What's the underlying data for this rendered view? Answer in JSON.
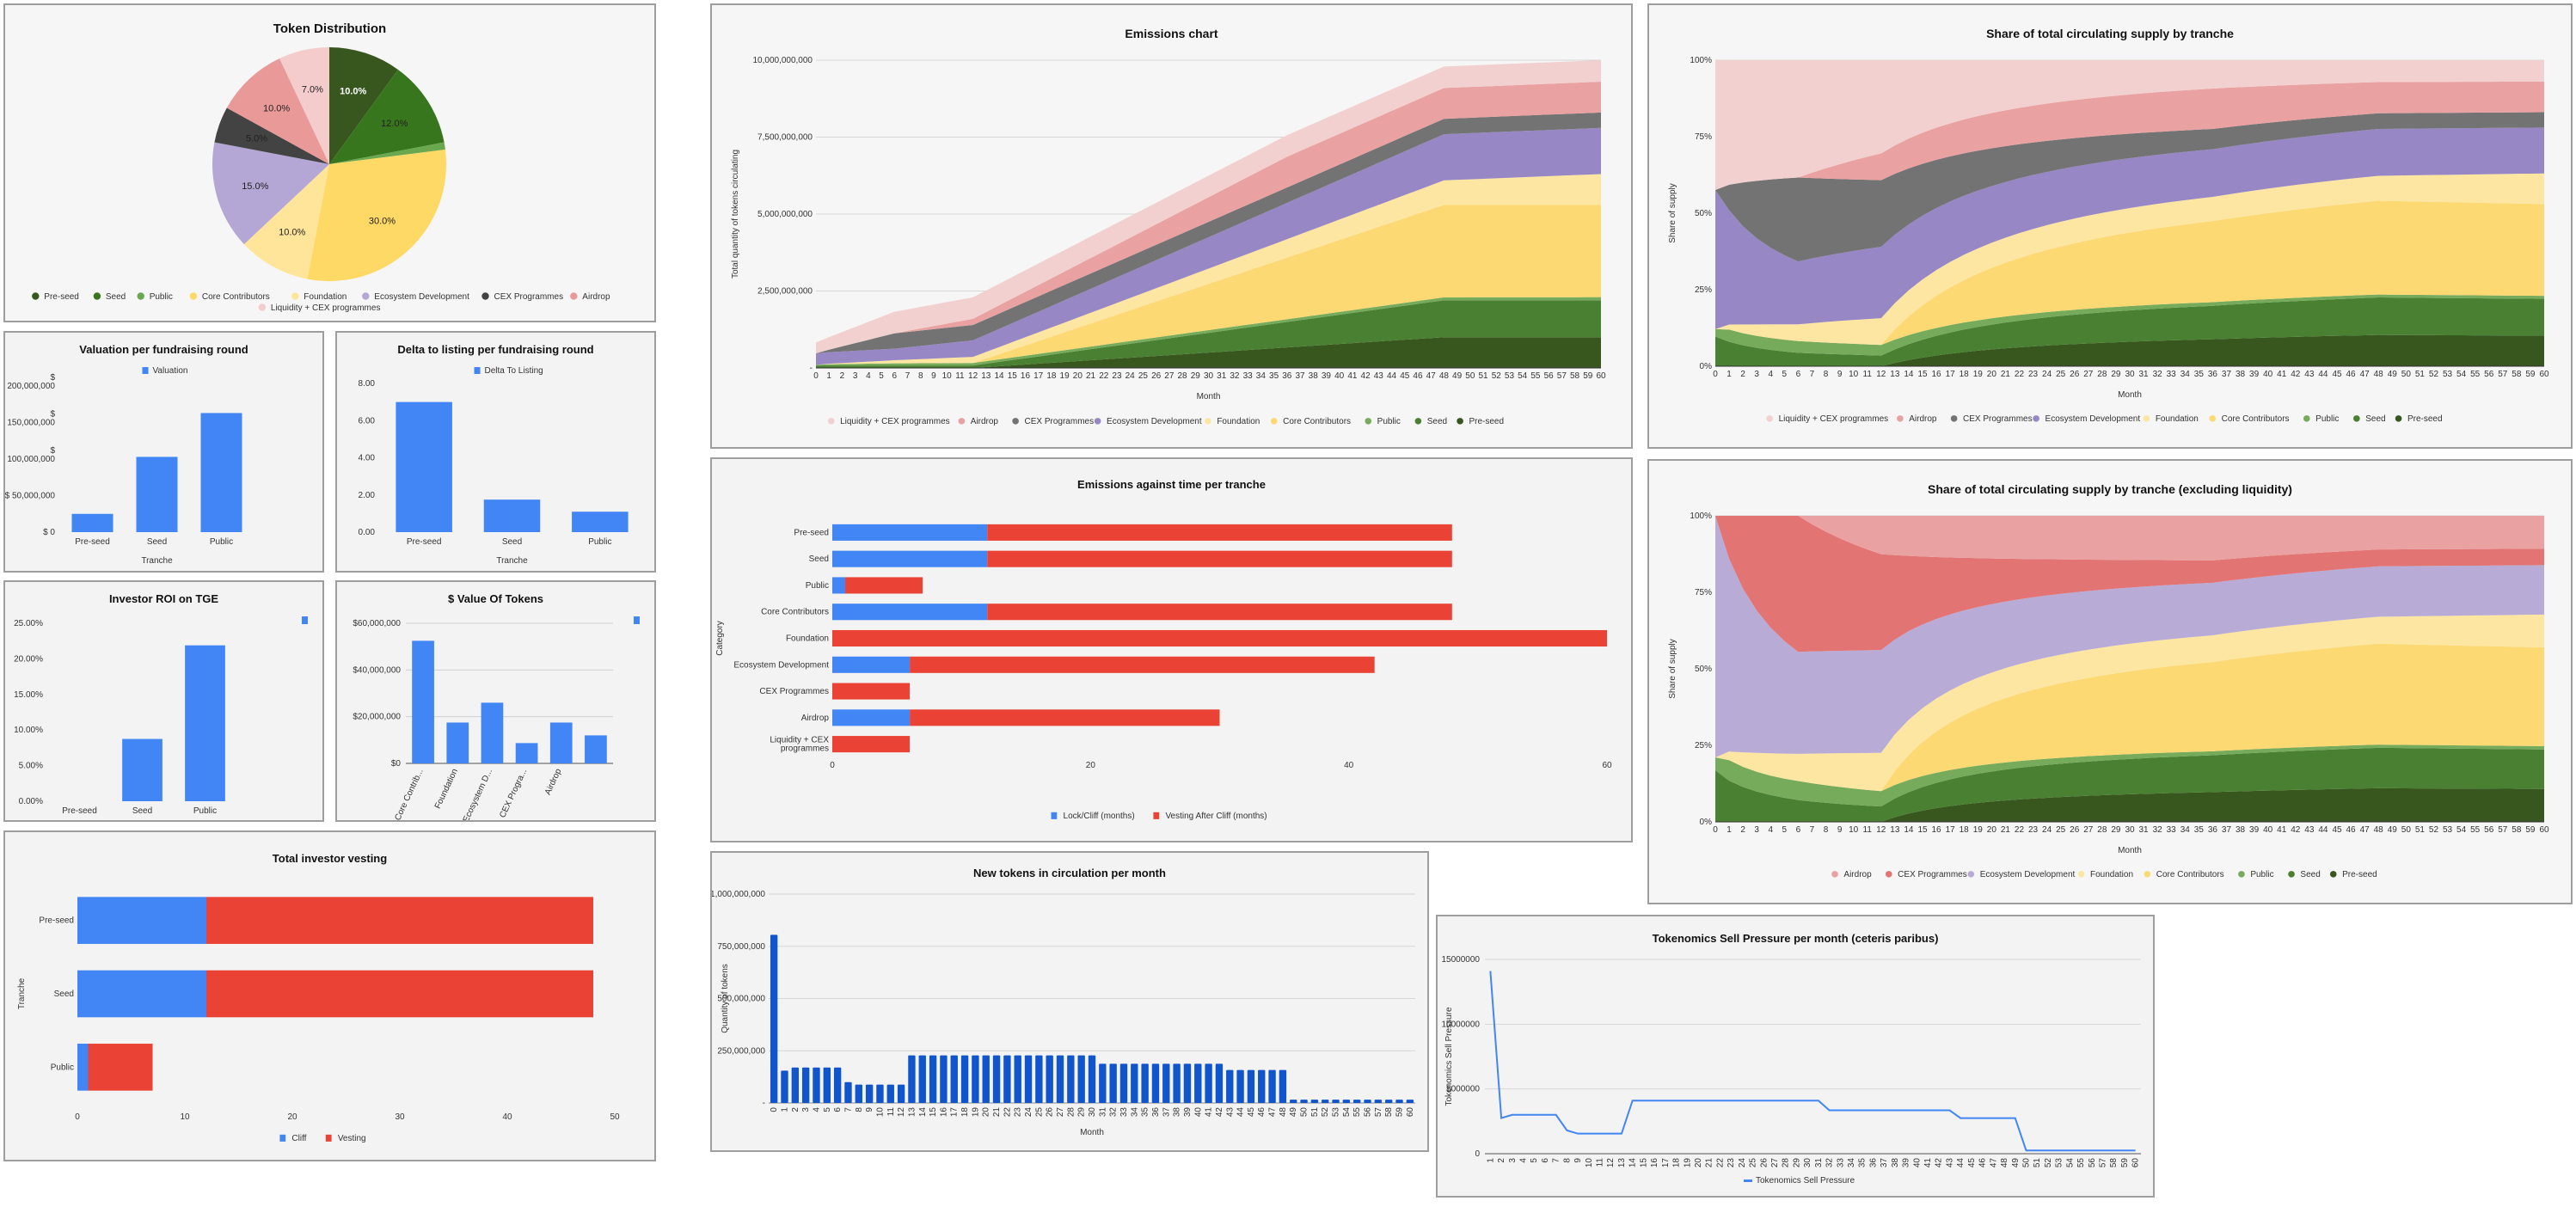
{
  "palette": {
    "pre_seed": "#38571f",
    "seed": "#4a8031",
    "public": "#76ab5c",
    "core_contributors": "#fdd974",
    "foundation": "#fde6a2",
    "ecosystem_development": "#9787c5",
    "ecosystem_development_light": "#b8acd6",
    "cex_programmes": "#737373",
    "cex_programmes_red": "#e27473",
    "airdrop": "#e9a1a1",
    "liquidity": "#f2d0d0",
    "blue": "#4285f4",
    "red": "#ea4335",
    "bar_dark_blue": "#1155cc"
  },
  "chart_data": [
    {
      "id": "token_distribution",
      "type": "pie",
      "title": "Token Distribution",
      "legend": "bottom",
      "slices": [
        {
          "label": "Pre-seed",
          "value": 10.0,
          "display": "10.0%",
          "color": "#38571f"
        },
        {
          "label": "Seed",
          "value": 12.0,
          "display": "12.0%",
          "color": "#38761d"
        },
        {
          "label": "Public",
          "value": 1.0,
          "display": "",
          "color": "#6aa84f"
        },
        {
          "label": "Core Contributors",
          "value": 30.0,
          "display": "30.0%",
          "color": "#ffd966"
        },
        {
          "label": "Foundation",
          "value": 10.0,
          "display": "10.0%",
          "color": "#ffe599"
        },
        {
          "label": "Ecosystem Development",
          "value": 15.0,
          "display": "15.0%",
          "color": "#b4a7d6"
        },
        {
          "label": "CEX Programmes",
          "value": 5.0,
          "display": "5.0%",
          "color": "#434343"
        },
        {
          "label": "Airdrop",
          "value": 10.0,
          "display": "10.0%",
          "color": "#ea9999"
        },
        {
          "label": "Liquidity + CEX programmes",
          "value": 7.0,
          "display": "7.0%",
          "color": "#f4cccc"
        }
      ]
    },
    {
      "id": "valuation",
      "type": "bar",
      "title": "Valuation per fundraising round",
      "legend": "top",
      "legend_labels": [
        "Valuation"
      ],
      "categories": [
        "Pre-seed",
        "Seed",
        "Public"
      ],
      "values": [
        25000000,
        103000000,
        163000000
      ],
      "ylim": [
        0,
        200000000
      ],
      "yticks": [
        "$ 0",
        "$ 50,000,000",
        "$\n100,000,000",
        "$\n150,000,000",
        "$\n200,000,000"
      ],
      "xlabel": "Tranche",
      "ylabel": ""
    },
    {
      "id": "delta_listing",
      "type": "bar",
      "title": "Delta to listing per fundraising round",
      "legend": "top",
      "legend_labels": [
        "Delta To Listing"
      ],
      "categories": [
        "Pre-seed",
        "Seed",
        "Public"
      ],
      "values": [
        7.0,
        1.75,
        1.1
      ],
      "ylim": [
        0,
        8
      ],
      "yticks": [
        "0.00",
        "2.00",
        "4.00",
        "6.00",
        "8.00"
      ],
      "xlabel": "Tranche",
      "ylabel": ""
    },
    {
      "id": "roi_tge",
      "type": "bar",
      "title": "Investor ROI on TGE",
      "legend": "top-right",
      "legend_labels": [
        ""
      ],
      "categories": [
        "Pre-seed",
        "Seed",
        "Public"
      ],
      "values": [
        0.0,
        8.75,
        21.9
      ],
      "ylim": [
        0,
        25
      ],
      "yticks": [
        "0.00%",
        "5.00%",
        "10.00%",
        "15.00%",
        "20.00%",
        "25.00%"
      ],
      "xlabel": "",
      "ylabel": ""
    },
    {
      "id": "value_tokens",
      "type": "bar",
      "title": "$ Value Of Tokens",
      "legend": "top-right",
      "legend_labels": [
        ""
      ],
      "categories": [
        "Core Contrib...",
        "Foundation",
        "Ecosystem D...",
        "CEX Progra...",
        "Airdrop",
        ""
      ],
      "values": [
        52500000,
        17500000,
        26000000,
        8700000,
        17500000,
        12000000
      ],
      "ylim": [
        0,
        60000000
      ],
      "yticks": [
        "$0",
        "$20,000,000",
        "$40,000,000",
        "$60,000,000"
      ],
      "grid": true,
      "xlabel": "",
      "ylabel": ""
    },
    {
      "id": "investor_vesting",
      "type": "stacked-bar-horizontal",
      "title": "Total investor vesting",
      "legend": "bottom",
      "categories": [
        "Pre-seed",
        "Seed",
        "Public"
      ],
      "series": [
        {
          "name": "Cliff",
          "values": [
            12,
            12,
            1
          ],
          "color": "#4285f4"
        },
        {
          "name": "Vesting",
          "values": [
            36,
            36,
            6
          ],
          "color": "#ea4335"
        }
      ],
      "xlim": [
        0,
        50
      ],
      "xticks": [
        "0",
        "10",
        "20",
        "30",
        "40",
        "50"
      ],
      "xlabel": "",
      "ylabel": "Tranche"
    },
    {
      "id": "emissions",
      "type": "area",
      "stacked": true,
      "title": "Emissions chart",
      "xlabel": "Month",
      "ylabel": "Total quantity of tokens circulating",
      "ylim": [
        0,
        10000000000
      ],
      "yticks": [
        "-",
        "2,500,000,000",
        "5,000,000,000",
        "7,500,000,000",
        "10,000,000,000"
      ],
      "x_range": [
        0,
        60
      ],
      "legend": "bottom",
      "series_order_bottom_to_top": [
        "Pre-seed",
        "Seed",
        "Public",
        "Core Contributors",
        "Foundation",
        "Ecosystem Development",
        "CEX Programmes",
        "Airdrop",
        "Liquidity + CEX programmes"
      ],
      "legend_labels": [
        "Liquidity + CEX programmes",
        "Airdrop",
        "CEX Programmes",
        "Ecosystem Development",
        "Foundation",
        "Core Contributors",
        "Public",
        "Seed",
        "Pre-seed"
      ],
      "series": [
        {
          "name": "Pre-seed",
          "color": "#38571f",
          "keypoints": [
            [
              0,
              0
            ],
            [
              12,
              0
            ],
            [
              48,
              1000000000
            ],
            [
              60,
              1000000000
            ]
          ]
        },
        {
          "name": "Seed",
          "color": "#4a8031",
          "keypoints": [
            [
              0,
              80000000
            ],
            [
              12,
              80000000
            ],
            [
              48,
              1200000000
            ],
            [
              60,
              1200000000
            ]
          ]
        },
        {
          "name": "Public",
          "color": "#76ab5c",
          "keypoints": [
            [
              0,
              20000000
            ],
            [
              1,
              40000000
            ],
            [
              6,
              70000000
            ],
            [
              12,
              80000000
            ],
            [
              60,
              100000000
            ]
          ]
        },
        {
          "name": "Core Contributors",
          "color": "#fdd974",
          "keypoints": [
            [
              0,
              0
            ],
            [
              12,
              0
            ],
            [
              48,
              3000000000
            ],
            [
              60,
              3000000000
            ]
          ]
        },
        {
          "name": "Foundation",
          "color": "#fde6a2",
          "keypoints": [
            [
              0,
              0
            ],
            [
              60,
              1000000000
            ]
          ]
        },
        {
          "name": "Ecosystem Development",
          "color": "#9787c5",
          "keypoints": [
            [
              0,
              375000000
            ],
            [
              6,
              375000000
            ],
            [
              48,
              1500000000
            ],
            [
              60,
              1500000000
            ]
          ]
        },
        {
          "name": "CEX Programmes",
          "color": "#737373",
          "keypoints": [
            [
              0,
              0
            ],
            [
              6,
              500000000
            ],
            [
              60,
              500000000
            ]
          ]
        },
        {
          "name": "Airdrop",
          "color": "#e9a1a1",
          "keypoints": [
            [
              0,
              0
            ],
            [
              6,
              0
            ],
            [
              36,
              1000000000
            ],
            [
              60,
              1000000000
            ]
          ]
        },
        {
          "name": "Liquidity + CEX programmes",
          "color": "#f2d0d0",
          "keypoints": [
            [
              0,
              350000000
            ],
            [
              6,
              700000000
            ],
            [
              60,
              700000000
            ]
          ]
        }
      ]
    },
    {
      "id": "share_supply",
      "type": "area",
      "stacked": true,
      "normalized": true,
      "title": "Share of total circulating supply by tranche",
      "xlabel": "Month",
      "ylabel": "Share of supply",
      "ylim": [
        0,
        100
      ],
      "yticks": [
        "0%",
        "25%",
        "50%",
        "75%",
        "100%"
      ],
      "x_range": [
        0,
        60
      ],
      "legend": "bottom",
      "legend_labels": [
        "Liquidity + CEX programmes",
        "Airdrop",
        "CEX Programmes",
        "Ecosystem Development",
        "Foundation",
        "Core Contributors",
        "Public",
        "Seed",
        "Pre-seed"
      ],
      "derived_from": "emissions"
    },
    {
      "id": "share_supply_ex_liquidity",
      "type": "area",
      "stacked": true,
      "normalized": true,
      "title": "Share of total circulating supply by tranche (excluding liquidity)",
      "xlabel": "Month",
      "ylabel": "Share of supply",
      "ylim": [
        0,
        100
      ],
      "yticks": [
        "0%",
        "25%",
        "50%",
        "75%",
        "100%"
      ],
      "x_range": [
        0,
        60
      ],
      "legend": "bottom",
      "legend_labels": [
        "Airdrop",
        "CEX Programmes",
        "Ecosystem Development",
        "Foundation",
        "Core Contributors",
        "Public",
        "Seed",
        "Pre-seed"
      ],
      "derived_from": "emissions",
      "excludes": [
        "Liquidity + CEX programmes"
      ],
      "color_overrides": {
        "Ecosystem Development": "#b8acd6",
        "CEX Programmes": "#e27473"
      }
    },
    {
      "id": "emissions_per_tranche",
      "type": "stacked-bar-horizontal",
      "title": "Emissions against time per tranche",
      "legend": "bottom",
      "categories": [
        "Pre-seed",
        "Seed",
        "Public",
        "Core Contributors",
        "Foundation",
        "Ecosystem Development",
        "CEX Programmes",
        "Airdrop",
        "Liquidity + CEX programmes"
      ],
      "series": [
        {
          "name": "Lock/Cliff (months)",
          "values": [
            12,
            12,
            1,
            12,
            0,
            6,
            0,
            6,
            0
          ],
          "color": "#4285f4"
        },
        {
          "name": "Vesting After Cliff (months)",
          "values": [
            36,
            36,
            6,
            36,
            60,
            36,
            6,
            24,
            6
          ],
          "color": "#ea4335"
        }
      ],
      "xlim": [
        0,
        60
      ],
      "xticks": [
        "0",
        "20",
        "40",
        "60"
      ],
      "xlabel": "",
      "ylabel": "Category"
    },
    {
      "id": "new_tokens",
      "type": "bar",
      "title": "New tokens in circulation per month",
      "xlabel": "Month",
      "ylabel": "Quantity of tokens",
      "ylim": [
        0,
        1000000000
      ],
      "yticks": [
        "-",
        "250,000,000",
        "500,000,000",
        "750,000,000",
        "1,000,000,000"
      ],
      "x": [
        0,
        1,
        2,
        3,
        4,
        5,
        6,
        7,
        8,
        9,
        10,
        11,
        12,
        13,
        14,
        15,
        16,
        17,
        18,
        19,
        20,
        21,
        22,
        23,
        24,
        25,
        26,
        27,
        28,
        29,
        30,
        31,
        32,
        33,
        34,
        35,
        36,
        37,
        38,
        39,
        40,
        41,
        42,
        43,
        44,
        45,
        46,
        47,
        48,
        49,
        50,
        51,
        52,
        53,
        54,
        55,
        56,
        57,
        58,
        59,
        60
      ],
      "values": [
        805000000,
        155000000,
        170000000,
        170000000,
        170000000,
        170000000,
        170000000,
        100000000,
        88000000,
        88000000,
        88000000,
        88000000,
        88000000,
        228000000,
        228000000,
        228000000,
        228000000,
        228000000,
        228000000,
        228000000,
        228000000,
        228000000,
        228000000,
        228000000,
        228000000,
        228000000,
        228000000,
        228000000,
        228000000,
        228000000,
        228000000,
        188000000,
        188000000,
        188000000,
        188000000,
        188000000,
        188000000,
        188000000,
        188000000,
        188000000,
        188000000,
        188000000,
        188000000,
        158000000,
        158000000,
        158000000,
        158000000,
        158000000,
        158000000,
        16000000,
        16000000,
        16000000,
        16000000,
        16000000,
        16000000,
        16000000,
        16000000,
        16000000,
        16000000,
        16000000,
        16000000
      ],
      "color": "#1155cc"
    },
    {
      "id": "sell_pressure",
      "type": "line",
      "title": "Tokenomics Sell Pressure per month (ceteris paribus)",
      "xlabel": "",
      "ylabel": "Tokenomics Sell Pressure",
      "ylim": [
        0,
        15000000
      ],
      "yticks": [
        "0",
        "5000000",
        "10000000",
        "15000000"
      ],
      "legend": "bottom",
      "legend_labels": [
        "Tokenomics Sell Pressure"
      ],
      "x": [
        1,
        2,
        3,
        4,
        5,
        6,
        7,
        8,
        9,
        10,
        11,
        12,
        13,
        14,
        15,
        16,
        17,
        18,
        19,
        20,
        21,
        22,
        23,
        24,
        25,
        26,
        27,
        28,
        29,
        30,
        31,
        32,
        33,
        34,
        35,
        36,
        37,
        38,
        39,
        40,
        41,
        42,
        43,
        44,
        45,
        46,
        47,
        48,
        49,
        50,
        51,
        52,
        53,
        54,
        55,
        56,
        57,
        58,
        59,
        60
      ],
      "values": [
        14100000,
        2750000,
        3000000,
        3000000,
        3000000,
        3000000,
        3000000,
        1800000,
        1550000,
        1550000,
        1550000,
        1550000,
        1550000,
        4100000,
        4100000,
        4100000,
        4100000,
        4100000,
        4100000,
        4100000,
        4100000,
        4100000,
        4100000,
        4100000,
        4100000,
        4100000,
        4100000,
        4100000,
        4100000,
        4100000,
        4100000,
        3350000,
        3350000,
        3350000,
        3350000,
        3350000,
        3350000,
        3350000,
        3350000,
        3350000,
        3350000,
        3350000,
        3350000,
        2750000,
        2750000,
        2750000,
        2750000,
        2750000,
        2750000,
        250000,
        250000,
        250000,
        250000,
        250000,
        250000,
        250000,
        250000,
        250000,
        250000,
        250000
      ],
      "color": "#4285f4"
    }
  ]
}
